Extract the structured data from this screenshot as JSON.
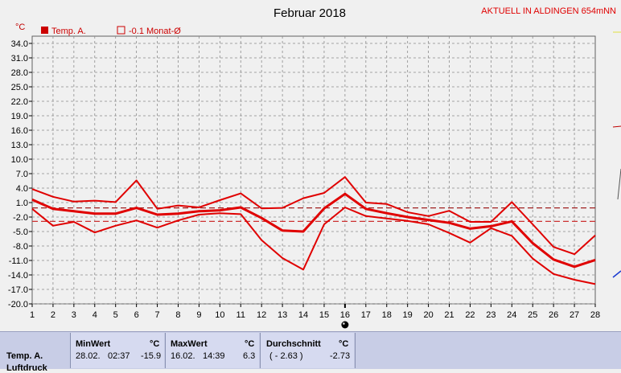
{
  "header": {
    "title": "Februar 2018",
    "location": "AKTUELL IN ALDINGEN 654mNN",
    "unit": "°C"
  },
  "legend": [
    {
      "label": "Temp. A.",
      "color": "#cc0000",
      "filled": true
    },
    {
      "label": "-0.1 Monat-Ø",
      "color": "#cc0000",
      "filled": false
    }
  ],
  "chart_data": {
    "type": "line",
    "title": "Februar 2018",
    "ylabel": "°C",
    "ylim": [
      -20,
      36
    ],
    "yticks": [
      "34.0",
      "31.0",
      "28.0",
      "25.0",
      "22.0",
      "19.0",
      "16.0",
      "13.0",
      "10.0",
      "7.0",
      "4.0",
      "1.0",
      "-2.0",
      "-5.0",
      "-8.0",
      "-11.0",
      "-14.0",
      "-17.0",
      "-20.0"
    ],
    "x": [
      1,
      2,
      3,
      4,
      5,
      6,
      7,
      8,
      9,
      10,
      11,
      12,
      13,
      14,
      15,
      16,
      17,
      18,
      19,
      20,
      21,
      22,
      23,
      24,
      25,
      26,
      27,
      28
    ],
    "grid": true,
    "series": [
      {
        "name": "",
        "role": "max",
        "values": [
          3.8,
          2.2,
          1.2,
          1.4,
          1.1,
          5.6,
          -0.3,
          0.4,
          0.0,
          1.5,
          2.9,
          -0.2,
          -0.1,
          1.9,
          3.0,
          6.3,
          1.0,
          0.7,
          -1.0,
          -1.8,
          -0.7,
          -3.0,
          -3.0,
          1.1,
          -3.5,
          -8.2,
          -9.7,
          -5.8
        ]
      },
      {
        "name": "",
        "role": "avg",
        "values": [
          1.6,
          -0.3,
          -0.8,
          -1.3,
          -1.3,
          -0.1,
          -1.5,
          -1.3,
          -0.8,
          -0.6,
          0.0,
          -2.2,
          -4.8,
          -5.0,
          -0.2,
          2.8,
          -0.3,
          -1.2,
          -2.0,
          -2.6,
          -3.2,
          -4.4,
          -3.9,
          -2.9,
          -7.4,
          -10.8,
          -12.3,
          -10.9
        ]
      },
      {
        "name": "",
        "role": "min",
        "values": [
          -0.3,
          -3.8,
          -3.0,
          -5.2,
          -3.8,
          -2.7,
          -4.2,
          -2.7,
          -1.5,
          -1.2,
          -1.4,
          -6.8,
          -10.5,
          -12.9,
          -3.5,
          0.0,
          -1.8,
          -2.3,
          -2.8,
          -3.5,
          -5.3,
          -7.3,
          -4.3,
          -5.9,
          -10.6,
          -13.8,
          -15.0,
          -15.9
        ]
      }
    ],
    "reference_lines": [
      {
        "label": "-0.1 Monat-Ø",
        "value": -0.1,
        "color": "#a02020"
      },
      {
        "value": -2.9,
        "color": "#cc3030"
      }
    ],
    "marker_day": 16
  },
  "stats": {
    "row_label": "Temp. A.",
    "row_label2": "Luftdruck",
    "min": {
      "header": "MinWert",
      "unit": "°C",
      "date": "28.02.",
      "time": "02:37",
      "value": "-15.9"
    },
    "max": {
      "header": "MaxWert",
      "unit": "°C",
      "date": "16.02.",
      "time": "14:39",
      "value": "6.3"
    },
    "avg": {
      "header": "Durchschnitt",
      "unit": "°C",
      "paren": "( - 2.63 )",
      "value": "-2.73"
    }
  },
  "colors": {
    "line": "#e00000",
    "grid": "#8c8c8c",
    "plot_bg": "#f0f0f0"
  }
}
